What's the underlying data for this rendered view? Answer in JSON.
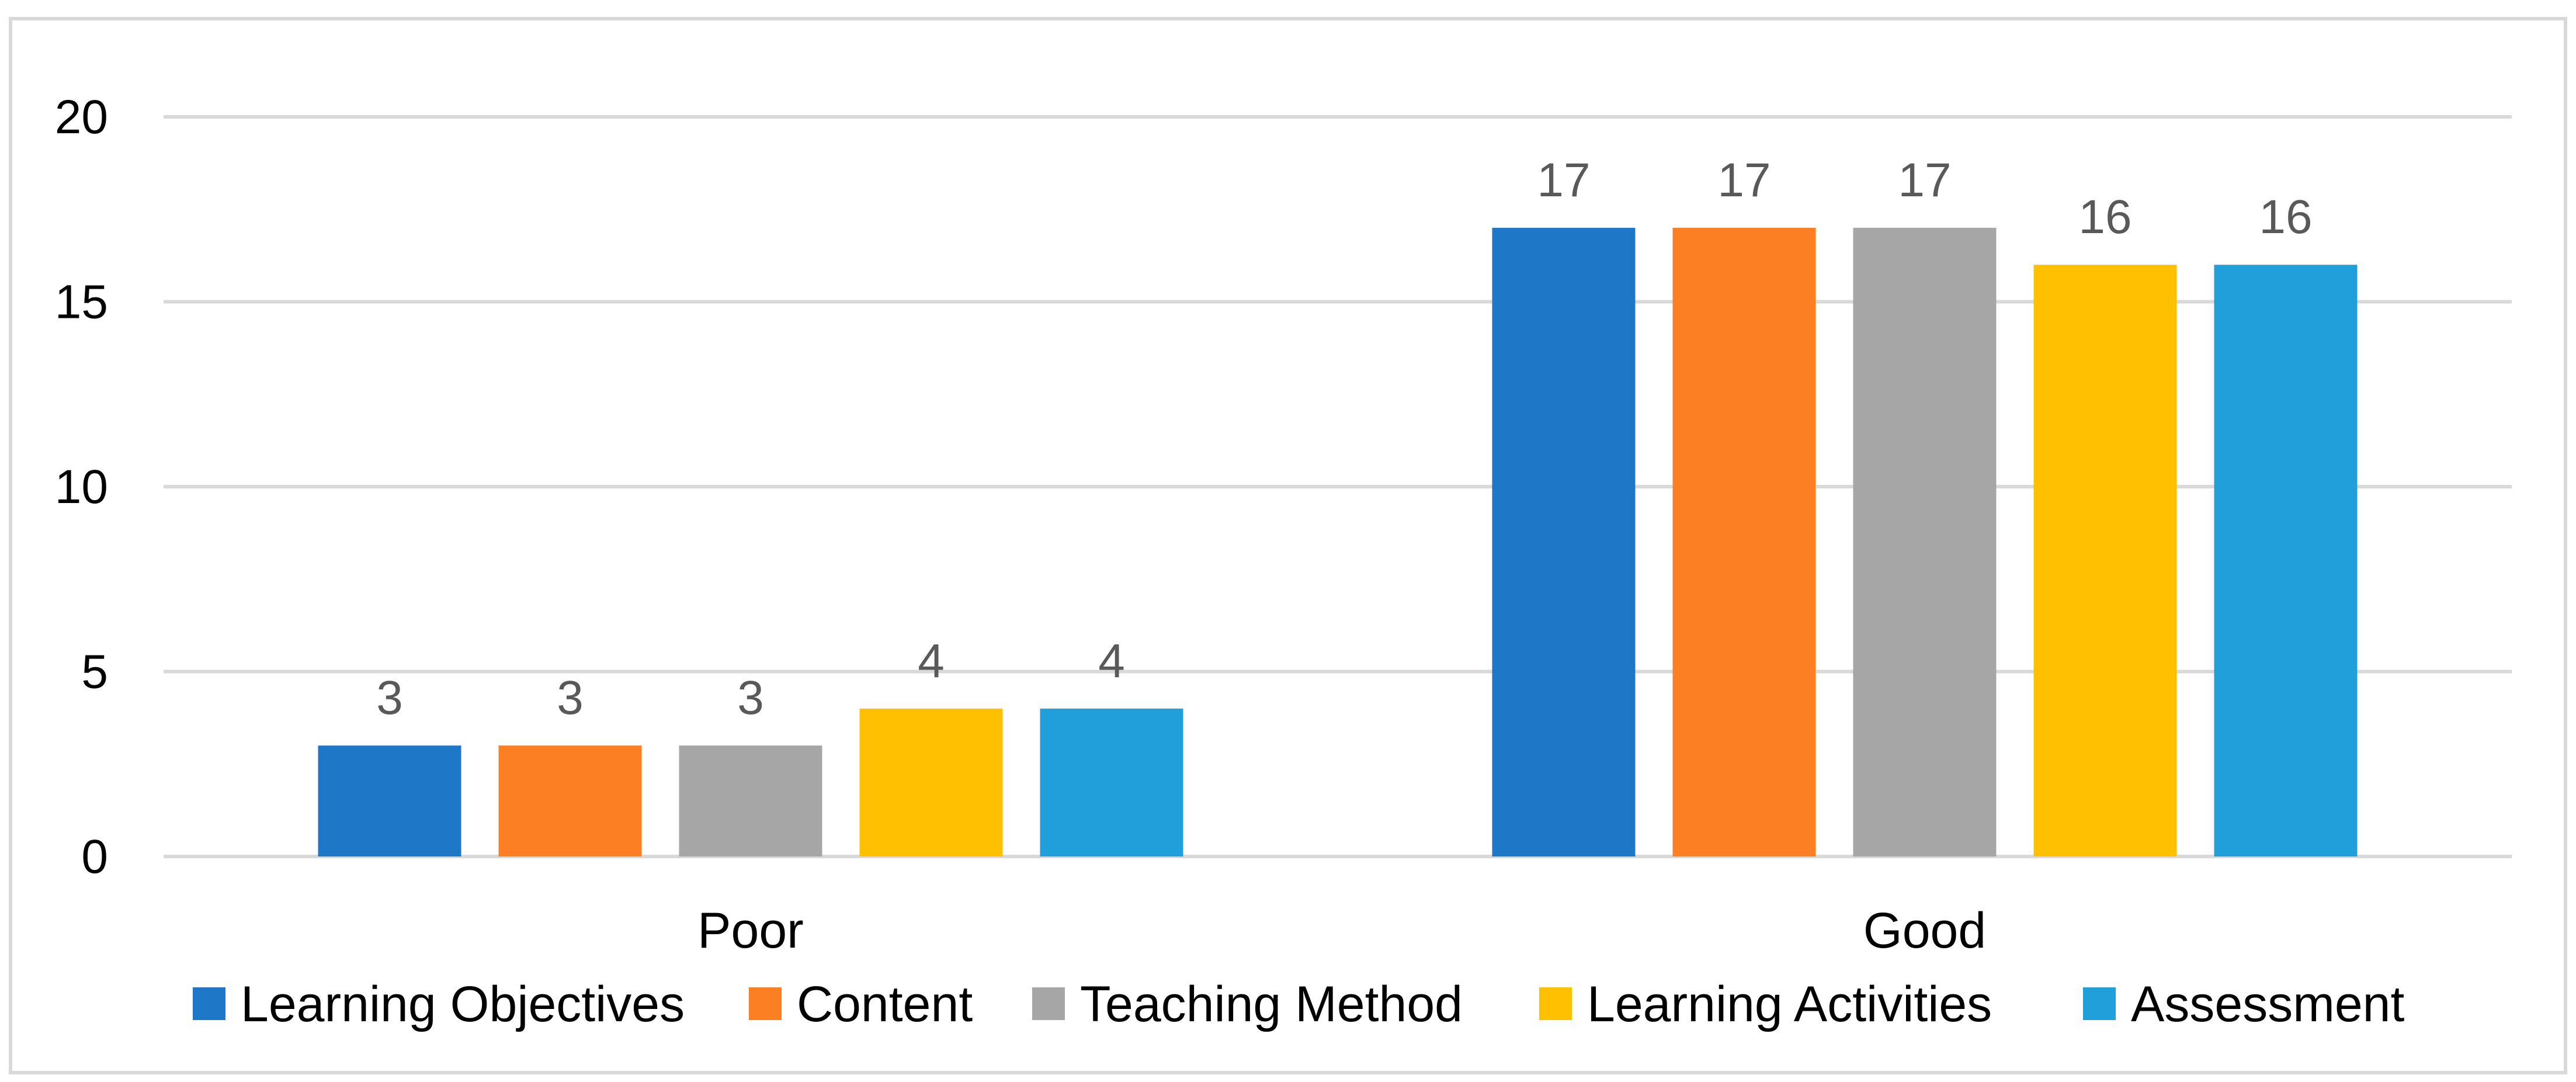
{
  "chart_data": {
    "type": "bar",
    "title": "",
    "xlabel": "",
    "ylabel": "",
    "categories": [
      "Poor",
      "Good"
    ],
    "series": [
      {
        "name": "Learning Objectives",
        "values": [
          3,
          17
        ],
        "color": "#1f77c8"
      },
      {
        "name": "Content",
        "values": [
          3,
          17
        ],
        "color": "#fd7f23"
      },
      {
        "name": "Teaching Method",
        "values": [
          3,
          17
        ],
        "color": "#a6a6a6"
      },
      {
        "name": "Learning Activities",
        "values": [
          4,
          16
        ],
        "color": "#fec000"
      },
      {
        "name": "Assessment",
        "values": [
          4,
          16
        ],
        "color": "#219fdb"
      }
    ],
    "ylim": [
      0,
      20
    ],
    "yticks": [
      "0",
      "5",
      "10",
      "15",
      "20"
    ],
    "grid": true,
    "legend_position": "bottom",
    "data_labels": true
  }
}
